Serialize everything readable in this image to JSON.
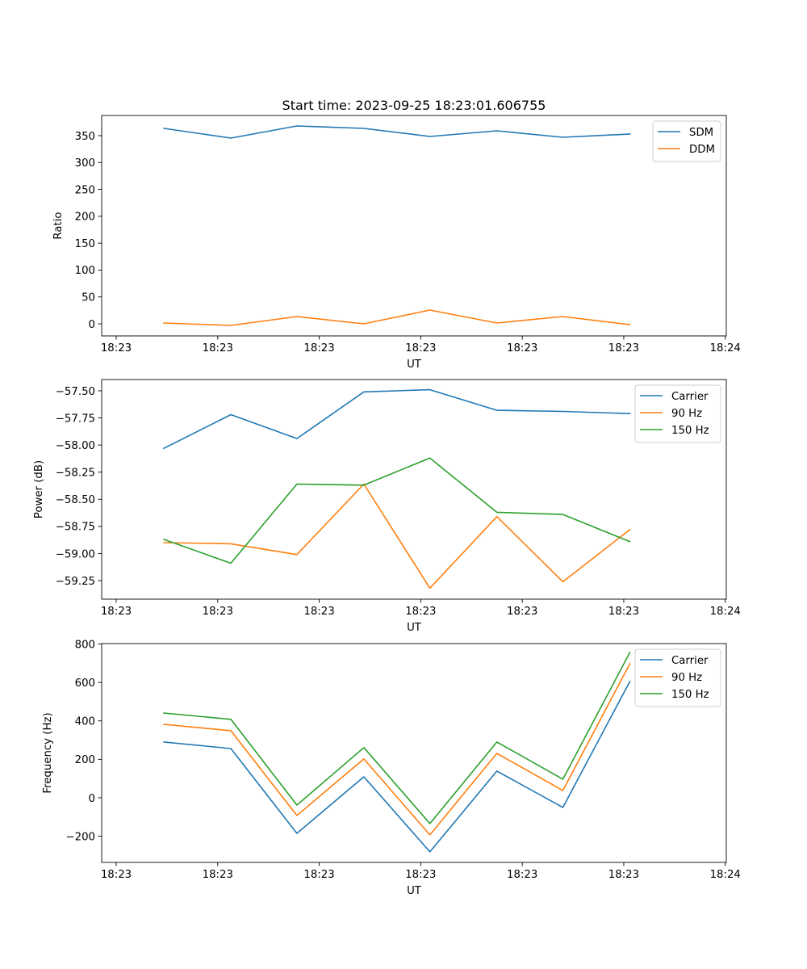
{
  "figure": {
    "title": "Start time: 2023-09-25 18:23:01.606755"
  },
  "chart_data": [
    {
      "type": "line",
      "title": "Start time: 2023-09-25 18:23:01.606755",
      "xlabel": "UT",
      "ylabel": "Ratio",
      "x_units": "seconds after 18:23:00",
      "x": [
        4.7,
        11.3,
        17.8,
        24.4,
        30.9,
        37.5,
        44.0,
        50.6
      ],
      "xlim": [
        -1.43,
        60.1
      ],
      "xticks": [
        0,
        10,
        20,
        30,
        40,
        50,
        60
      ],
      "xtick_labels": [
        "18:23",
        "18:23",
        "18:23",
        "18:23",
        "18:23",
        "18:23",
        "18:24"
      ],
      "ylim": [
        -22.5,
        387.5
      ],
      "yticks": [
        0,
        50,
        100,
        150,
        200,
        250,
        300,
        350
      ],
      "ytick_labels": [
        "0",
        "50",
        "100",
        "150",
        "200",
        "250",
        "300",
        "350"
      ],
      "grid": false,
      "legend": "top-right",
      "series": [
        {
          "name": "SDM",
          "color": "#1f77b4",
          "values": [
            363.5,
            345.5,
            368,
            363.5,
            348.5,
            359,
            347,
            353
          ]
        },
        {
          "name": "DDM",
          "color": "#ff7f0e",
          "values": [
            1.5,
            -3,
            13.5,
            0,
            25.5,
            1.5,
            13.5,
            -1.5
          ]
        }
      ]
    },
    {
      "type": "line",
      "title": "",
      "xlabel": "UT",
      "ylabel": "Power (dB)",
      "x_units": "seconds after 18:23:00",
      "x": [
        4.7,
        11.3,
        17.8,
        24.4,
        30.9,
        37.5,
        44.0,
        50.6
      ],
      "xlim": [
        -1.43,
        60.1
      ],
      "xticks": [
        0,
        10,
        20,
        30,
        40,
        50,
        60
      ],
      "xtick_labels": [
        "18:23",
        "18:23",
        "18:23",
        "18:23",
        "18:23",
        "18:23",
        "18:24"
      ],
      "ylim": [
        -59.421,
        -57.396
      ],
      "yticks": [
        -59.25,
        -59.0,
        -58.75,
        -58.5,
        -58.25,
        -58.0,
        -57.75,
        -57.5
      ],
      "ytick_labels": [
        "−59.25",
        "−59.00",
        "−58.75",
        "−58.50",
        "−58.25",
        "−58.00",
        "−57.75",
        "−57.50"
      ],
      "grid": false,
      "legend": "top-right",
      "series": [
        {
          "name": "Carrier",
          "color": "#1f77b4",
          "values": [
            -58.03,
            -57.72,
            -57.94,
            -57.51,
            -57.49,
            -57.68,
            -57.69,
            -57.71
          ]
        },
        {
          "name": "90 Hz",
          "color": "#ff7f0e",
          "values": [
            -58.9,
            -58.91,
            -59.01,
            -58.36,
            -59.32,
            -58.66,
            -59.26,
            -58.78
          ]
        },
        {
          "name": "150 Hz",
          "color": "#2ca02c",
          "values": [
            -58.87,
            -59.09,
            -58.36,
            -58.37,
            -58.12,
            -58.62,
            -58.64,
            -58.89
          ]
        }
      ]
    },
    {
      "type": "line",
      "title": "",
      "xlabel": "UT",
      "ylabel": "Frequency (Hz)",
      "x_units": "seconds after 18:23:00",
      "x": [
        4.7,
        11.3,
        17.8,
        24.4,
        30.9,
        37.5,
        44.0,
        50.6
      ],
      "xlim": [
        -1.43,
        60.1
      ],
      "xticks": [
        0,
        10,
        20,
        30,
        40,
        50,
        60
      ],
      "xtick_labels": [
        "18:23",
        "18:23",
        "18:23",
        "18:23",
        "18:23",
        "18:23",
        "18:24"
      ],
      "ylim": [
        -336,
        802
      ],
      "yticks": [
        -200,
        0,
        200,
        400,
        600,
        800
      ],
      "ytick_labels": [
        "−200",
        "0",
        "200",
        "400",
        "600",
        "800"
      ],
      "grid": false,
      "legend": "top-right",
      "series": [
        {
          "name": "Carrier",
          "color": "#1f77b4",
          "values": [
            290,
            256,
            -185,
            109,
            -281,
            139,
            -50,
            605
          ]
        },
        {
          "name": "90 Hz",
          "color": "#ff7f0e",
          "values": [
            382,
            349,
            -92,
            202,
            -193,
            231,
            38,
            697
          ]
        },
        {
          "name": "150 Hz",
          "color": "#2ca02c",
          "values": [
            441,
            408,
            -38,
            261,
            -134,
            290,
            97,
            756
          ]
        }
      ]
    }
  ]
}
